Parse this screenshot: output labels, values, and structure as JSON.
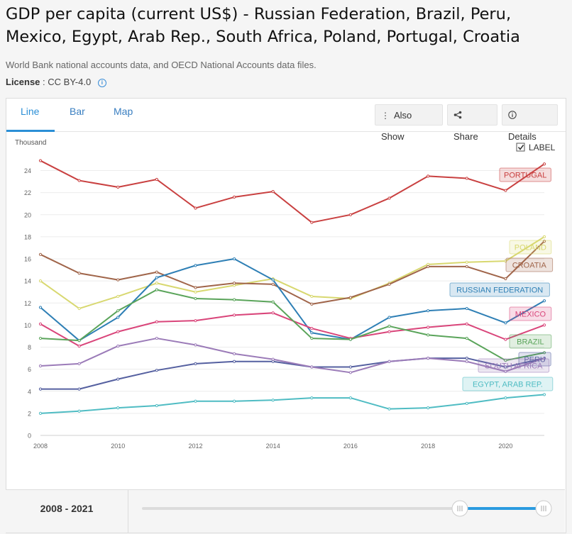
{
  "title": "GDP per capita (current US$) - Russian Federation, Brazil, Peru, Mexico, Egypt, Arab Rep., South Africa, Poland, Portugal, Croatia",
  "source": "World Bank national accounts data, and OECD National Accounts data files.",
  "license": {
    "label": "License",
    "value": ": CC BY-4.0"
  },
  "tabs": [
    {
      "label": "Line"
    },
    {
      "label": "Bar"
    },
    {
      "label": "Map"
    }
  ],
  "actions": {
    "also_show": "Also Show",
    "share": "Share",
    "details": "Details"
  },
  "label_toggle": {
    "text": "LABEL",
    "checked": true
  },
  "range": {
    "start": "2008",
    "separator": "-",
    "end": "2021"
  },
  "chart_data": {
    "type": "line",
    "ylabel": "Thousand",
    "ylim": [
      0,
      25
    ],
    "yticks": [
      0,
      2,
      4,
      6,
      8,
      10,
      12,
      14,
      16,
      18,
      20,
      22,
      24
    ],
    "xticks": [
      2008,
      2010,
      2012,
      2014,
      2016,
      2018,
      2020
    ],
    "x": [
      2008,
      2009,
      2010,
      2011,
      2012,
      2013,
      2014,
      2015,
      2016,
      2017,
      2018,
      2019,
      2020,
      2021
    ],
    "grid": true,
    "series": [
      {
        "name": "PORTUGAL",
        "color": "#c94040",
        "values": [
          24.9,
          23.1,
          22.5,
          23.2,
          20.6,
          21.6,
          22.1,
          19.3,
          20.0,
          21.5,
          23.5,
          23.3,
          22.2,
          24.6
        ]
      },
      {
        "name": "POLAND",
        "color": "#d8d870",
        "values": [
          14.0,
          11.5,
          12.6,
          13.8,
          13.0,
          13.6,
          14.2,
          12.6,
          12.4,
          13.8,
          15.5,
          15.7,
          15.8,
          18.0
        ]
      },
      {
        "name": "CROATIA",
        "color": "#a0654a",
        "values": [
          16.4,
          14.7,
          14.1,
          14.8,
          13.4,
          13.8,
          13.7,
          11.9,
          12.5,
          13.7,
          15.3,
          15.3,
          14.2,
          17.6
        ]
      },
      {
        "name": "RUSSIAN FEDERATION",
        "color": "#2e7fb5",
        "values": [
          11.6,
          8.6,
          10.7,
          14.3,
          15.4,
          16.0,
          14.1,
          9.3,
          8.7,
          10.7,
          11.3,
          11.5,
          10.2,
          12.2
        ]
      },
      {
        "name": "MEXICO",
        "color": "#d9457a",
        "values": [
          10.1,
          8.1,
          9.4,
          10.3,
          10.4,
          10.9,
          11.1,
          9.7,
          8.8,
          9.4,
          9.8,
          10.1,
          8.7,
          10.0
        ]
      },
      {
        "name": "BRAZIL",
        "color": "#5aa45a",
        "values": [
          8.8,
          8.6,
          11.3,
          13.2,
          12.4,
          12.3,
          12.1,
          8.8,
          8.7,
          9.9,
          9.1,
          8.8,
          6.8,
          7.5
        ]
      },
      {
        "name": "PERU",
        "color": "#5560a0",
        "values": [
          4.2,
          4.2,
          5.1,
          5.9,
          6.5,
          6.7,
          6.7,
          6.2,
          6.2,
          6.7,
          7.0,
          7.0,
          6.2,
          7.0
        ]
      },
      {
        "name": "SOUTH AFRICA",
        "color": "#9b7bb8",
        "values": [
          6.3,
          6.5,
          8.1,
          8.8,
          8.2,
          7.4,
          6.9,
          6.2,
          5.7,
          6.7,
          7.0,
          6.7,
          5.8,
          7.0
        ]
      },
      {
        "name": "EGYPT, ARAB REP.",
        "color": "#4fbcc3",
        "values": [
          2.0,
          2.2,
          2.5,
          2.7,
          3.1,
          3.1,
          3.2,
          3.4,
          3.4,
          2.4,
          2.5,
          2.9,
          3.4,
          3.7
        ]
      }
    ]
  }
}
